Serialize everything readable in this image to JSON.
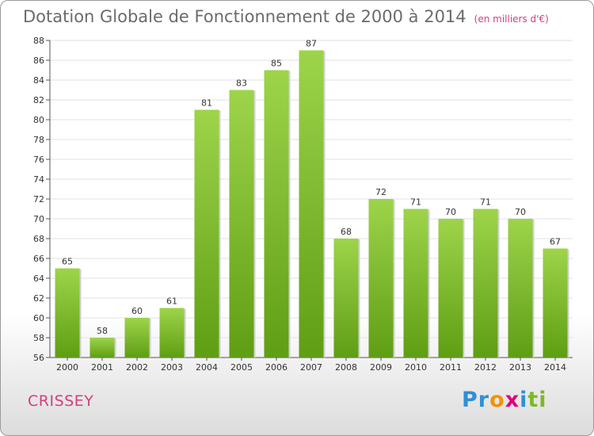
{
  "chart_data": {
    "type": "bar",
    "title": "Dotation Globale de Fonctionnement de 2000 à 2014",
    "unit": "(en milliers d'€)",
    "categories": [
      "2000",
      "2001",
      "2002",
      "2003",
      "2004",
      "2005",
      "2006",
      "2007",
      "2008",
      "2009",
      "2010",
      "2011",
      "2012",
      "2013",
      "2014"
    ],
    "values": [
      65,
      58,
      60,
      61,
      81,
      83,
      85,
      87,
      68,
      72,
      71,
      70,
      71,
      70,
      67
    ],
    "ylim": [
      56,
      88
    ],
    "ytick_step": 2,
    "grid": true,
    "bar_color": "#7cc022"
  },
  "footer": {
    "city": "CRISSEY",
    "logo_letters": [
      {
        "ch": "P",
        "color": "#2f8fd8"
      },
      {
        "ch": "r",
        "color": "#2f8fd8"
      },
      {
        "ch": "o",
        "color": "#f39200"
      },
      {
        "ch": "x",
        "color": "#e2007a"
      },
      {
        "ch": "i",
        "color": "#2f8fd8"
      },
      {
        "ch": "t",
        "color": "#7cb928"
      },
      {
        "ch": "i",
        "color": "#7cb928"
      }
    ]
  }
}
